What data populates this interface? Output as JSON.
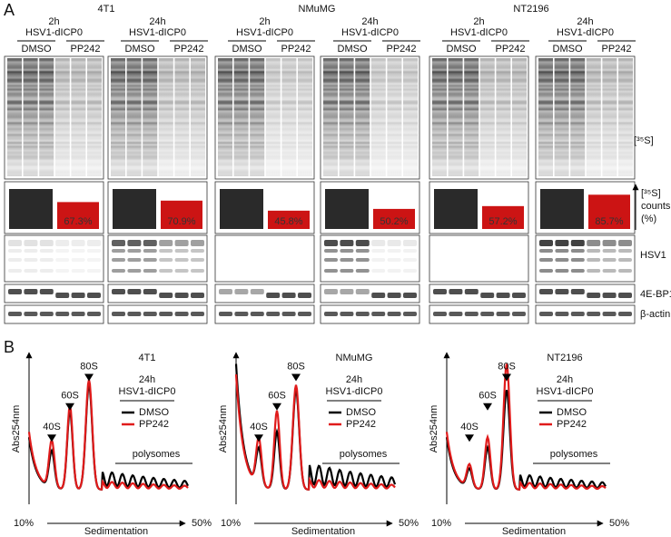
{
  "panel_a": {
    "label": "A",
    "cell_lines": [
      {
        "name": "4T1",
        "timepoints": [
          {
            "time": "2h",
            "virus": "HSV1-dICP0",
            "treatments": [
              "DMSO",
              "PP242"
            ],
            "dmso_value": 100,
            "pp242_value": 67.3,
            "pp242_label": "67.3%"
          },
          {
            "time": "24h",
            "virus": "HSV1-dICP0",
            "treatments": [
              "DMSO",
              "PP242"
            ],
            "dmso_value": 100,
            "pp242_value": 70.9,
            "pp242_label": "70.9%"
          }
        ]
      },
      {
        "name": "NMuMG",
        "timepoints": [
          {
            "time": "2h",
            "virus": "HSV1-dICP0",
            "treatments": [
              "DMSO",
              "PP242"
            ],
            "dmso_value": 100,
            "pp242_value": 45.8,
            "pp242_label": "45.8%"
          },
          {
            "time": "24h",
            "virus": "HSV1-dICP0",
            "treatments": [
              "DMSO",
              "PP242"
            ],
            "dmso_value": 100,
            "pp242_value": 50.2,
            "pp242_label": "50.2%"
          }
        ]
      },
      {
        "name": "NT2196",
        "timepoints": [
          {
            "time": "2h",
            "virus": "HSV1-dICP0",
            "treatments": [
              "DMSO",
              "PP242"
            ],
            "dmso_value": 100,
            "pp242_value": 57.2,
            "pp242_label": "57.2%"
          },
          {
            "time": "24h",
            "virus": "HSV1-dICP0",
            "treatments": [
              "DMSO",
              "PP242"
            ],
            "dmso_value": 100,
            "pp242_value": 85.7,
            "pp242_label": "85.7%"
          }
        ]
      }
    ],
    "bar_colors": {
      "dmso": "#2a2a2a",
      "pp242": "#cc1414"
    },
    "row_labels": {
      "gel": "[³⁵S]",
      "counts": [
        "[³⁵S]",
        "counts",
        "(%)"
      ],
      "hsv1": "HSV1",
      "eif": "4E-BP1",
      "actin": "β-actin"
    }
  },
  "panel_b": {
    "label": "B",
    "series": [
      {
        "name": "DMSO",
        "color": "#000000"
      },
      {
        "name": "PP242",
        "color": "#e01b1b"
      }
    ],
    "profiles": [
      {
        "cell_line": "4T1",
        "time": "24h",
        "virus": "HSV1-dICP0",
        "peaks": [
          "40S",
          "60S",
          "80S"
        ],
        "polysomes": "polysomes",
        "y_label": "Abs254nm",
        "x_label": "Sedimentation",
        "x_start": "10%",
        "x_end": "50%"
      },
      {
        "cell_line": "NMuMG",
        "time": "24h",
        "virus": "HSV1-dICP0",
        "peaks": [
          "40S",
          "60S",
          "80S"
        ],
        "polysomes": "polysomes",
        "y_label": "Abs254nm",
        "x_label": "Sedimentation",
        "x_start": "10%",
        "x_end": "50%"
      },
      {
        "cell_line": "NT2196",
        "time": "24h",
        "virus": "HSV1-dICP0",
        "peaks": [
          "40S",
          "60S",
          "80S"
        ],
        "polysomes": "polysomes",
        "y_label": "Abs254nm",
        "x_label": "Sedimentation",
        "x_start": "10%",
        "x_end": "50%"
      }
    ]
  }
}
